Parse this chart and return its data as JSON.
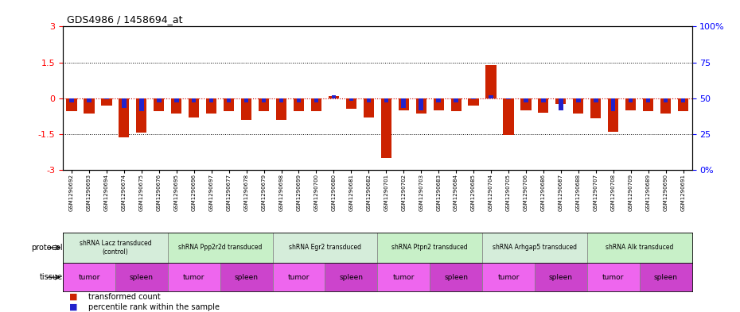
{
  "title": "GDS4986 / 1458694_at",
  "samples": [
    "GSM1290692",
    "GSM1290693",
    "GSM1290694",
    "GSM1290674",
    "GSM1290675",
    "GSM1290676",
    "GSM1290695",
    "GSM1290696",
    "GSM1290697",
    "GSM1290677",
    "GSM1290678",
    "GSM1290679",
    "GSM1290698",
    "GSM1290699",
    "GSM1290700",
    "GSM1290680",
    "GSM1290681",
    "GSM1290682",
    "GSM1290701",
    "GSM1290702",
    "GSM1290703",
    "GSM1290683",
    "GSM1290684",
    "GSM1290685",
    "GSM1290704",
    "GSM1290705",
    "GSM1290706",
    "GSM1290686",
    "GSM1290687",
    "GSM1290688",
    "GSM1290707",
    "GSM1290708",
    "GSM1290709",
    "GSM1290689",
    "GSM1290690",
    "GSM1290691"
  ],
  "red_values": [
    -0.55,
    -0.65,
    -0.3,
    -1.62,
    -1.45,
    -0.55,
    -0.65,
    -0.8,
    -0.65,
    -0.55,
    -0.9,
    -0.55,
    -0.9,
    -0.55,
    -0.55,
    0.1,
    -0.45,
    -0.8,
    -2.5,
    -0.5,
    -0.65,
    -0.5,
    -0.55,
    -0.3,
    1.4,
    -1.55,
    -0.5,
    -0.6,
    -0.25,
    -0.65,
    -0.85,
    -1.4,
    -0.5,
    -0.55,
    -0.65,
    -0.55
  ],
  "blue_values": [
    -0.18,
    -0.18,
    -0.05,
    -0.4,
    -0.55,
    -0.18,
    -0.18,
    -0.18,
    -0.18,
    -0.18,
    -0.18,
    -0.18,
    -0.18,
    -0.18,
    -0.18,
    0.12,
    -0.12,
    -0.18,
    -0.18,
    -0.4,
    -0.5,
    -0.18,
    -0.18,
    -0.05,
    0.12,
    -0.05,
    -0.18,
    -0.18,
    -0.5,
    -0.18,
    -0.18,
    -0.55,
    -0.18,
    -0.18,
    -0.18,
    -0.18
  ],
  "protocols": [
    {
      "label": "shRNA Lacz transduced\n(control)",
      "start": 0,
      "end": 6
    },
    {
      "label": "shRNA Ppp2r2d transduced",
      "start": 6,
      "end": 12
    },
    {
      "label": "shRNA Egr2 transduced",
      "start": 12,
      "end": 18
    },
    {
      "label": "shRNA Ptpn2 transduced",
      "start": 18,
      "end": 24
    },
    {
      "label": "shRNA Arhgap5 transduced",
      "start": 24,
      "end": 30
    },
    {
      "label": "shRNA Alk transduced",
      "start": 30,
      "end": 36
    }
  ],
  "proto_colors": [
    "#d5edda",
    "#c8f0c8",
    "#d5edda",
    "#c8f0c8",
    "#d5edda",
    "#c8f0c8"
  ],
  "tissues": [
    {
      "label": "tumor",
      "start": 0,
      "end": 3
    },
    {
      "label": "spleen",
      "start": 3,
      "end": 6
    },
    {
      "label": "tumor",
      "start": 6,
      "end": 9
    },
    {
      "label": "spleen",
      "start": 9,
      "end": 12
    },
    {
      "label": "tumor",
      "start": 12,
      "end": 15
    },
    {
      "label": "spleen",
      "start": 15,
      "end": 18
    },
    {
      "label": "tumor",
      "start": 18,
      "end": 21
    },
    {
      "label": "spleen",
      "start": 21,
      "end": 24
    },
    {
      "label": "tumor",
      "start": 24,
      "end": 27
    },
    {
      "label": "spleen",
      "start": 27,
      "end": 30
    },
    {
      "label": "tumor",
      "start": 30,
      "end": 33
    },
    {
      "label": "spleen",
      "start": 33,
      "end": 36
    }
  ],
  "tumor_color": "#ee66ee",
  "spleen_color": "#cc44cc",
  "ylim": [
    -3,
    3
  ],
  "yticks_left": [
    -3,
    -1.5,
    0,
    1.5,
    3
  ],
  "yticks_right": [
    0,
    25,
    50,
    75,
    100
  ],
  "right_tick_labels": [
    "0%",
    "25",
    "50",
    "75",
    "100%"
  ],
  "red_color": "#cc2200",
  "blue_color": "#2222cc",
  "zero_line_color": "#cc0000",
  "bg_color": "#ffffff"
}
